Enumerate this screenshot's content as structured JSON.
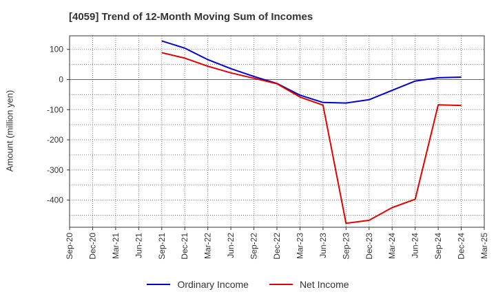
{
  "chart_data": {
    "type": "line",
    "title": "[4059]  Trend of 12-Month Moving Sum of Incomes",
    "ylabel": "Amount (million yen)",
    "xlabel": "",
    "ylim": [
      -490,
      145
    ],
    "yticks": [
      100,
      0,
      -100,
      -200,
      -300,
      -400
    ],
    "categories": [
      "Sep-20",
      "Dec-20",
      "Mar-21",
      "Jun-21",
      "Sep-21",
      "Dec-21",
      "Mar-22",
      "Jun-22",
      "Sep-22",
      "Dec-22",
      "Mar-23",
      "Jun-23",
      "Sep-23",
      "Dec-23",
      "Mar-24",
      "Jun-24",
      "Sep-24",
      "Dec-24",
      "Mar-25"
    ],
    "grid": true,
    "legend_position": "bottom",
    "series": [
      {
        "name": "Ordinary Income",
        "color": "#0000cc",
        "values": [
          null,
          null,
          null,
          null,
          128,
          104,
          66,
          36,
          10,
          -13,
          -52,
          -76,
          -78,
          -67,
          -36,
          -5,
          6,
          8,
          null
        ]
      },
      {
        "name": "Net Income",
        "color": "#e00000",
        "values": [
          null,
          null,
          null,
          null,
          89,
          71,
          44,
          22,
          4,
          -14,
          -58,
          -85,
          -477,
          -467,
          -425,
          -397,
          -84,
          -86,
          null
        ]
      }
    ]
  }
}
